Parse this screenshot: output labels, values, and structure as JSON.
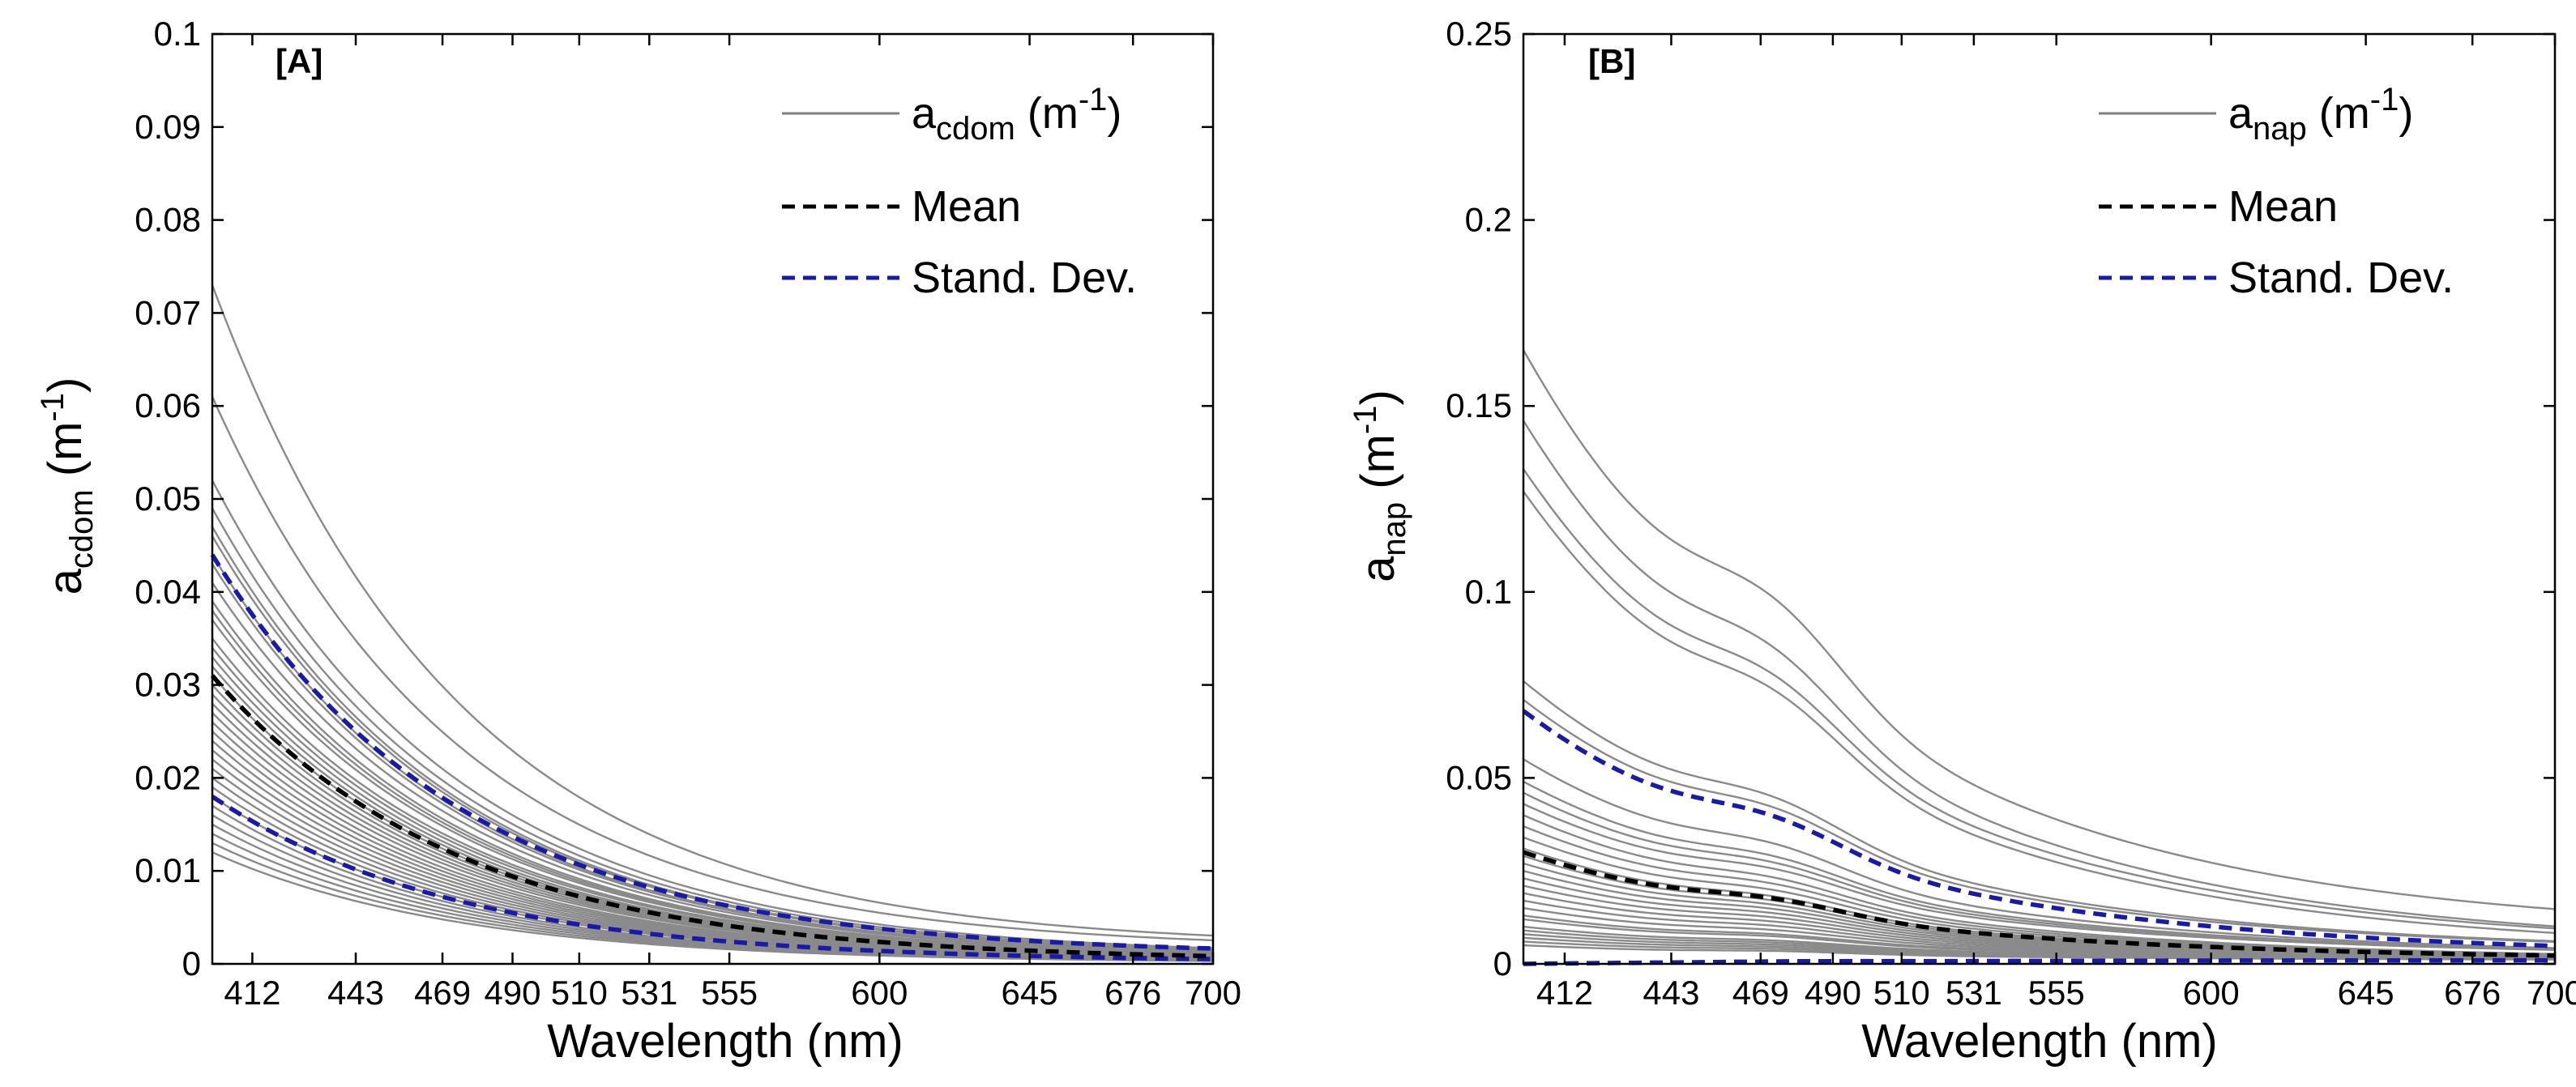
{
  "chart_data": [
    {
      "type": "line",
      "panel_label": "[A]",
      "xlabel": "Wavelength (nm)",
      "ylabel": {
        "base": "a",
        "sub": "cdom",
        "unit_open": " (m",
        "unit_sup": "-1",
        "unit_close": ")"
      },
      "xlim": [
        400,
        700
      ],
      "ylim": [
        0,
        0.1
      ],
      "xticks": [
        412,
        443,
        469,
        490,
        510,
        531,
        555,
        600,
        645,
        676,
        700
      ],
      "yticks": [
        0,
        0.01,
        0.02,
        0.03,
        0.04,
        0.05,
        0.06,
        0.07,
        0.08,
        0.09,
        0.1
      ],
      "ytick_labels": [
        "0",
        "0.01",
        "0.02",
        "0.03",
        "0.04",
        "0.05",
        "0.06",
        "0.07",
        "0.08",
        "0.09",
        "0.1"
      ],
      "grid": false,
      "legend_position": "top-right",
      "legend": [
        {
          "label_base": "a",
          "label_sub": "cdom",
          "label_rest": " (m",
          "label_sup": "-1",
          "label_close": ")",
          "style": "solid",
          "color": "#7f7f7f"
        },
        {
          "label": "Mean",
          "style": "dashed",
          "color": "#000000"
        },
        {
          "label": "Stand. Dev.",
          "style": "dashed",
          "color": "#1a1aaa"
        }
      ],
      "model": "exponential",
      "samples_a400": [
        0.073,
        0.061,
        0.052,
        0.049,
        0.047,
        0.046,
        0.044,
        0.043,
        0.041,
        0.039,
        0.038,
        0.037,
        0.035,
        0.034,
        0.033,
        0.032,
        0.031,
        0.03,
        0.029,
        0.028,
        0.027,
        0.026,
        0.025,
        0.024,
        0.023,
        0.022,
        0.021,
        0.02,
        0.019,
        0.018,
        0.017,
        0.016,
        0.015,
        0.014,
        0.013,
        0.012
      ],
      "samples_slope": 0.0135,
      "samples_offset": [
        0.0018,
        0.0015,
        0.0008,
        0.0007,
        0.0006,
        0.0006,
        0.0005,
        0.0005,
        0.0005,
        0.0004,
        0.0004,
        0.0004,
        0.0004,
        0.0004,
        0.0003,
        0.0003,
        0.0003,
        0.0003,
        0.0003,
        0.0003,
        0.0003,
        0.0002,
        0.0002,
        0.0002,
        0.0002,
        0.0002,
        0.0002,
        0.0002,
        0.0002,
        0.0002,
        0.0001,
        0.0001,
        0.0001,
        0.0001,
        0.0001,
        0.0001
      ],
      "mean": {
        "a400": 0.031,
        "slope": 0.0135,
        "offset": 0.0003
      },
      "std_upper": {
        "a400": 0.044,
        "slope": 0.0135,
        "offset": 0.0009
      },
      "std_lower": {
        "a400": 0.018,
        "slope": 0.0135,
        "offset": 0.0002
      }
    },
    {
      "type": "line",
      "panel_label": "[B]",
      "xlabel": "Wavelength (nm)",
      "ylabel": {
        "base": "a",
        "sub": "nap",
        "unit_open": " (m",
        "unit_sup": "-1",
        "unit_close": ")"
      },
      "xlim": [
        400,
        700
      ],
      "ylim": [
        0,
        0.25
      ],
      "xticks": [
        412,
        443,
        469,
        490,
        510,
        531,
        555,
        600,
        645,
        676,
        700
      ],
      "yticks": [
        0,
        0.05,
        0.1,
        0.15,
        0.2,
        0.25
      ],
      "ytick_labels": [
        "0",
        "0.05",
        "0.1",
        "0.15",
        "0.2",
        "0.25"
      ],
      "grid": false,
      "legend_position": "top-right",
      "legend": [
        {
          "label_base": "a",
          "label_sub": "nap",
          "label_rest": " (m",
          "label_sup": "-1",
          "label_close": ")",
          "style": "solid",
          "color": "#7f7f7f"
        },
        {
          "label": "Mean",
          "style": "dashed",
          "color": "#000000"
        },
        {
          "label": "Stand. Dev.",
          "style": "dashed",
          "color": "#1a1aaa"
        }
      ],
      "model": "exponential_with_shoulder",
      "samples_a400": [
        0.165,
        0.146,
        0.133,
        0.127,
        0.076,
        0.071,
        0.055,
        0.049,
        0.046,
        0.043,
        0.04,
        0.037,
        0.034,
        0.031,
        0.029,
        0.027,
        0.025,
        0.023,
        0.021,
        0.019,
        0.017,
        0.015,
        0.013,
        0.012,
        0.01,
        0.009,
        0.008,
        0.007,
        0.006,
        0.005
      ],
      "samples_slope": 0.0105,
      "samples_offset": [
        0.008,
        0.004,
        0.004,
        0.003,
        0.003,
        0.003,
        0.002,
        0.002,
        0.002,
        0.002,
        0.001,
        0.001,
        0.001,
        0.001,
        0.001,
        0.001,
        0.001,
        0.001,
        0.001,
        0.001,
        0.001,
        0.001,
        0.001,
        0.001,
        0.001,
        0.001,
        0.001,
        0.001,
        0.001,
        0.001
      ],
      "shoulder": {
        "center": 478,
        "width": 30,
        "amount": 0.22
      },
      "mean": {
        "a400": 0.03,
        "slope": 0.0105,
        "offset": 0.001
      },
      "std_upper": {
        "a400": 0.068,
        "slope": 0.0105,
        "offset": 0.002
      },
      "std_lower": {
        "a400": 0.0,
        "slope": 0.0105,
        "offset": 0.001
      }
    }
  ]
}
